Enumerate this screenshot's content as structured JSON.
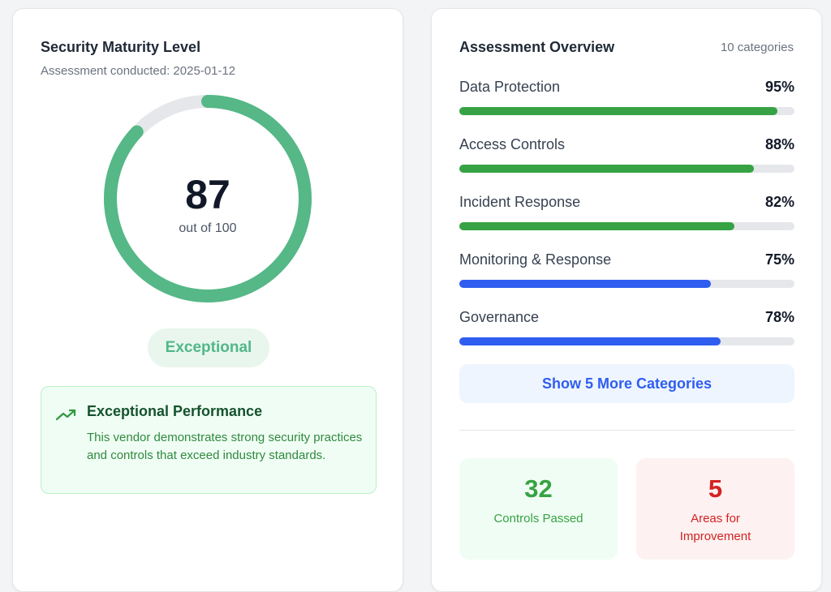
{
  "left": {
    "title": "Security Maturity Level",
    "subtitle": "Assessment conducted: 2025-01-12",
    "score": 87,
    "score_max_label": "out of 100",
    "score_fraction": 0.87,
    "ring_color": "#55b886",
    "badge": "Exceptional",
    "callout": {
      "icon": "trending-up-icon",
      "title": "Exceptional Performance",
      "text": "This vendor demonstrates strong security practices and controls that exceed industry standards."
    }
  },
  "right": {
    "title": "Assessment Overview",
    "count": "10 categories",
    "categories": [
      {
        "label": "Data Protection",
        "pct": "95%",
        "value": 95,
        "color": "#37a244"
      },
      {
        "label": "Access Controls",
        "pct": "88%",
        "value": 88,
        "color": "#37a244"
      },
      {
        "label": "Incident Response",
        "pct": "82%",
        "value": 82,
        "color": "#37a244"
      },
      {
        "label": "Monitoring & Response",
        "pct": "75%",
        "value": 75,
        "color": "#2f5df0"
      },
      {
        "label": "Governance",
        "pct": "78%",
        "value": 78,
        "color": "#2f5df0"
      }
    ],
    "more_button": "Show 5 More Categories",
    "stats": [
      {
        "value": "32",
        "label": "Controls Passed",
        "color": "#37a244",
        "bg": "#f0fdf4"
      },
      {
        "value": "5",
        "label": "Areas for Improvement",
        "color": "#d32222",
        "bg": "#fdf1f1"
      }
    ]
  }
}
